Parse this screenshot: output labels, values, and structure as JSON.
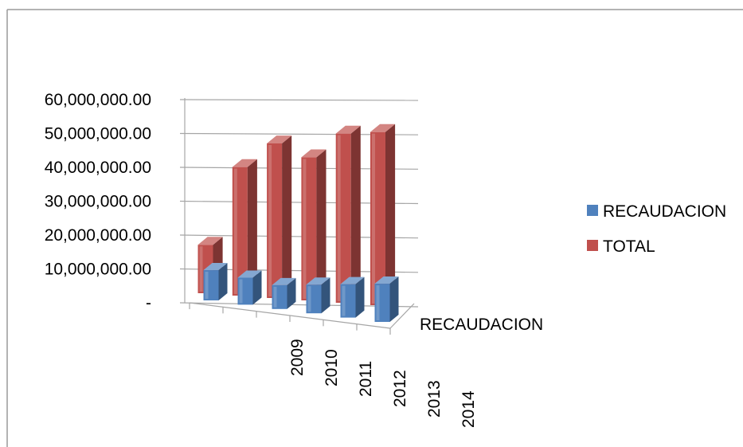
{
  "chart_data": {
    "type": "bar",
    "subtype": "3d-clustered-column",
    "title": "",
    "xlabel": "",
    "ylabel": "",
    "categories": [
      "2009",
      "2010",
      "2011",
      "2012",
      "2013",
      "2014"
    ],
    "depth_axis_label": "RECAUDACION",
    "ylim": [
      0,
      60000000
    ],
    "y_ticks": [
      0,
      10000000,
      20000000,
      30000000,
      40000000,
      50000000,
      60000000
    ],
    "y_tick_labels": [
      "-",
      "10,000,000.00",
      "20,000,000.00",
      "30,000,000.00",
      "40,000,000.00",
      "50,000,000.00",
      "60,000,000.00"
    ],
    "series": [
      {
        "name": "RECAUDACION",
        "color": "#4F81BD",
        "values": [
          9500000,
          8500000,
          7500000,
          9000000,
          10500000,
          12000000
        ]
      },
      {
        "name": "TOTAL",
        "color": "#C0504D",
        "values": [
          20500000,
          43500000,
          50500000,
          46500000,
          53500000,
          54000000
        ]
      }
    ],
    "grid": true,
    "legend_position": "right",
    "frame_border_color": "#9a9a9a"
  }
}
